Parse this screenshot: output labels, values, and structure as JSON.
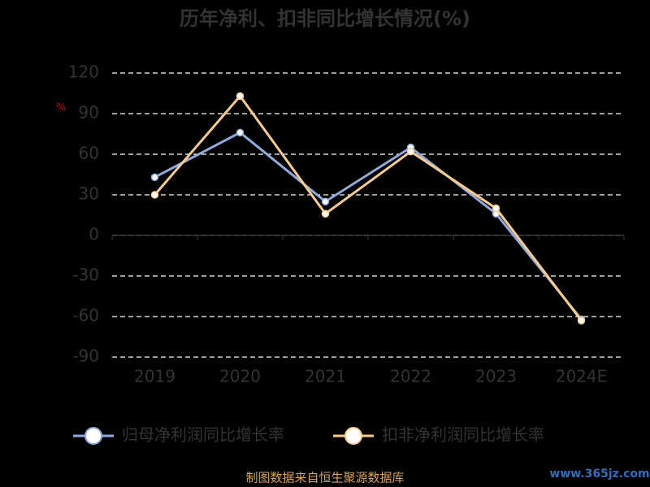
{
  "chart_data": {
    "type": "line",
    "title": "历年净利、扣非同比增长情况(%)",
    "y_label": "%",
    "categories": [
      "2019",
      "2020",
      "2021",
      "2022",
      "2023",
      "2024E"
    ],
    "series": [
      {
        "name": "归母净利润同比增长率",
        "color": "#8faadc",
        "values": [
          43,
          76,
          25,
          65,
          16,
          -62
        ]
      },
      {
        "name": "扣非净利润同比增长率",
        "color": "#f8cb8a",
        "values": [
          30,
          103,
          16,
          62,
          20,
          -63
        ]
      }
    ],
    "ylim": [
      -90,
      120
    ],
    "yticks": [
      -90,
      -60,
      -30,
      0,
      30,
      60,
      90,
      120
    ],
    "grid": true,
    "source": "制图数据来自恒生聚源数据库",
    "watermark": "www.365jz.com"
  }
}
